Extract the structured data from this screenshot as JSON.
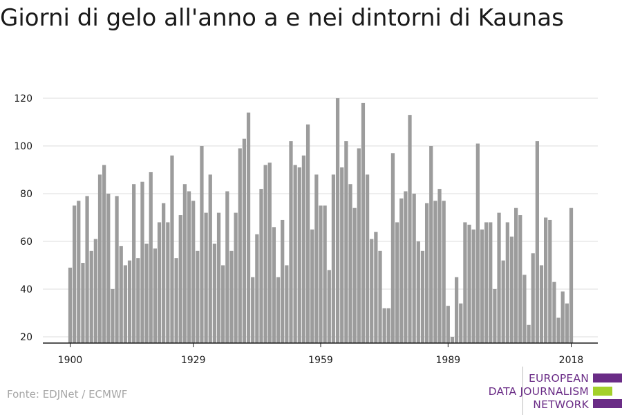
{
  "source": "Fonte: EDJNet / ECMWF",
  "logo": {
    "lines": [
      "EUROPEAN",
      "DATA JOURNALISM",
      "NETWORK"
    ],
    "colors": {
      "purple": "#6a2c86",
      "green": "#a3d12a"
    }
  },
  "colors": {
    "bar": "#9c9c9c",
    "grid": "#dedede",
    "axis": "#1a1a1a",
    "text": "#1a1a1a"
  },
  "chart_data": {
    "type": "bar",
    "title": "Giorni di gelo all'anno a e nei dintorni di Kaunas",
    "xlabel": "",
    "ylabel": "",
    "x_start": 1900,
    "x_end": 2018,
    "x_ticks": [
      1900,
      1929,
      1959,
      1989,
      2018
    ],
    "y_ticks": [
      20,
      40,
      60,
      80,
      100,
      120
    ],
    "ylim": [
      17,
      125
    ],
    "grid": true,
    "legend": "none",
    "values": [
      49,
      75,
      77,
      51,
      79,
      56,
      61,
      88,
      92,
      80,
      40,
      79,
      58,
      50,
      52,
      84,
      53,
      85,
      59,
      89,
      57,
      68,
      76,
      68,
      96,
      53,
      71,
      84,
      81,
      77,
      56,
      100,
      72,
      88,
      59,
      72,
      50,
      81,
      56,
      72,
      99,
      103,
      114,
      45,
      63,
      82,
      92,
      93,
      66,
      45,
      69,
      50,
      102,
      92,
      91,
      96,
      109,
      65,
      88,
      75,
      75,
      48,
      88,
      120,
      91,
      102,
      84,
      74,
      99,
      118,
      88,
      61,
      64,
      56,
      32,
      32,
      97,
      68,
      78,
      81,
      113,
      80,
      60,
      56,
      76,
      100,
      77,
      82,
      77,
      33,
      20,
      45,
      34,
      68,
      67,
      65,
      101,
      65,
      68,
      68,
      40,
      72,
      52,
      68,
      62,
      74,
      71,
      46,
      25,
      55,
      102,
      50,
      70,
      69,
      43,
      28,
      39,
      34,
      74
    ]
  }
}
